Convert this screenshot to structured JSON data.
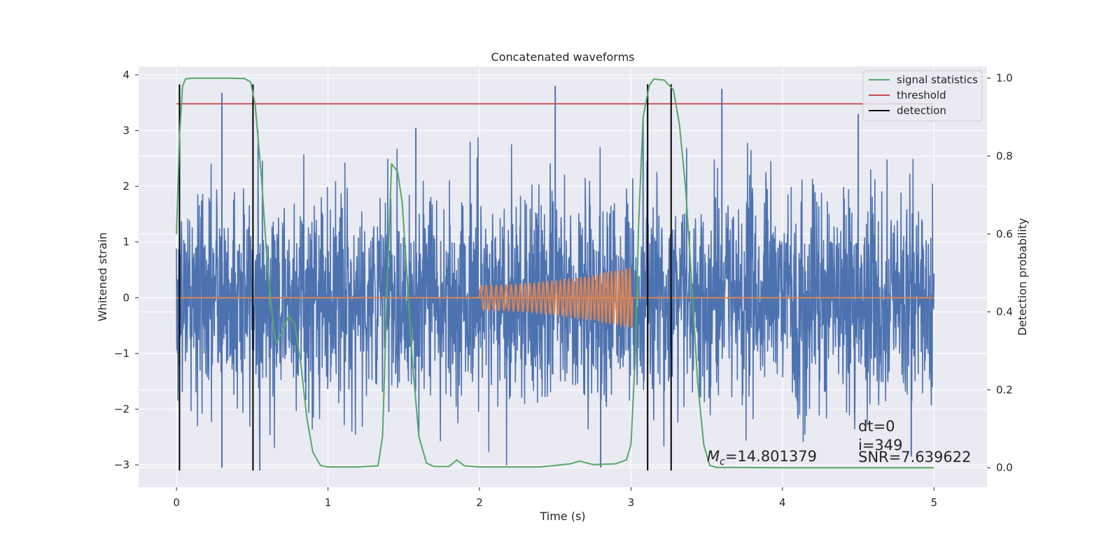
{
  "chart_data": {
    "type": "line",
    "title": "Concatenated waveforms",
    "xlabel": "Time (s)",
    "ylabel": "Whitened strain",
    "ylabel_right": "Detection probability",
    "xlim": [
      -0.25,
      5.35
    ],
    "ylim": [
      -3.4,
      4.15
    ],
    "ylim_right": [
      -0.05,
      1.03
    ],
    "x_ticks": [
      0,
      1,
      2,
      3,
      4,
      5
    ],
    "x_tick_labels": [
      "0",
      "1",
      "2",
      "3",
      "4",
      "5"
    ],
    "y_ticks": [
      -3,
      -2,
      -1,
      0,
      1,
      2,
      3,
      4
    ],
    "y_tick_labels": [
      "−3",
      "−2",
      "−1",
      "0",
      "1",
      "2",
      "3",
      "4"
    ],
    "y_right_ticks": [
      0.0,
      0.2,
      0.4,
      0.6,
      0.8,
      1.0
    ],
    "y_right_tick_labels": [
      "0.0",
      "0.2",
      "0.4",
      "0.6",
      "0.8",
      "1.0"
    ],
    "grid": true,
    "legend_position": "top-right",
    "colors": {
      "background": "#eaeaf2",
      "grid": "#ffffff",
      "strain": "#4c72b0",
      "template": "#dd8452",
      "signal_statistics": "#55a868",
      "threshold": "#c44e52",
      "detection": "#000000"
    },
    "series": [
      {
        "key": "strain",
        "axis": "left",
        "x_range": [
          0,
          5
        ],
        "noise_std": 0.95,
        "spikes": [
          {
            "x": 0.3,
            "y": 3.68
          },
          {
            "x": 2.5,
            "y": 3.8
          },
          {
            "x": 3.6,
            "y": 3.75
          },
          {
            "x": 4.5,
            "y": 3.3
          },
          {
            "x": 3.08,
            "y": 3.2
          },
          {
            "x": 1.58,
            "y": 3.05
          },
          {
            "x": 0.3,
            "y": -3.05
          },
          {
            "x": 0.55,
            "y": -3.1
          },
          {
            "x": 2.8,
            "y": -3.05
          },
          {
            "x": 4.85,
            "y": -2.85
          }
        ]
      },
      {
        "key": "template",
        "axis": "left",
        "flat": [
          [
            0,
            0
          ],
          [
            5,
            0
          ]
        ],
        "chirp": {
          "t0": 2.0,
          "t1": 3.01,
          "amp_start": 0.22,
          "amp_end": 0.55,
          "cycles": 36
        }
      },
      {
        "name": "signal statistics",
        "key": "signal_statistics",
        "axis": "right",
        "points": [
          [
            0.0,
            0.6
          ],
          [
            0.02,
            0.85
          ],
          [
            0.04,
            0.98
          ],
          [
            0.06,
            0.998
          ],
          [
            0.1,
            1.0
          ],
          [
            0.2,
            1.0
          ],
          [
            0.35,
            1.0
          ],
          [
            0.45,
            0.999
          ],
          [
            0.49,
            0.99
          ],
          [
            0.52,
            0.93
          ],
          [
            0.56,
            0.75
          ],
          [
            0.6,
            0.52
          ],
          [
            0.64,
            0.36
          ],
          [
            0.66,
            0.32
          ],
          [
            0.7,
            0.35
          ],
          [
            0.74,
            0.39
          ],
          [
            0.78,
            0.37
          ],
          [
            0.82,
            0.27
          ],
          [
            0.86,
            0.13
          ],
          [
            0.9,
            0.04
          ],
          [
            0.95,
            0.006
          ],
          [
            1.0,
            0.002
          ],
          [
            1.2,
            0.002
          ],
          [
            1.33,
            0.005
          ],
          [
            1.36,
            0.08
          ],
          [
            1.39,
            0.45
          ],
          [
            1.42,
            0.78
          ],
          [
            1.46,
            0.76
          ],
          [
            1.49,
            0.68
          ],
          [
            1.52,
            0.5
          ],
          [
            1.56,
            0.26
          ],
          [
            1.6,
            0.08
          ],
          [
            1.65,
            0.012
          ],
          [
            1.7,
            0.003
          ],
          [
            1.8,
            0.003
          ],
          [
            1.85,
            0.02
          ],
          [
            1.9,
            0.005
          ],
          [
            2.0,
            0.002
          ],
          [
            2.4,
            0.002
          ],
          [
            2.6,
            0.01
          ],
          [
            2.66,
            0.017
          ],
          [
            2.75,
            0.008
          ],
          [
            2.9,
            0.01
          ],
          [
            2.97,
            0.02
          ],
          [
            3.0,
            0.06
          ],
          [
            3.03,
            0.3
          ],
          [
            3.05,
            0.62
          ],
          [
            3.08,
            0.9
          ],
          [
            3.12,
            0.98
          ],
          [
            3.15,
            0.998
          ],
          [
            3.22,
            0.995
          ],
          [
            3.28,
            0.97
          ],
          [
            3.32,
            0.88
          ],
          [
            3.36,
            0.72
          ],
          [
            3.4,
            0.48
          ],
          [
            3.44,
            0.22
          ],
          [
            3.48,
            0.06
          ],
          [
            3.52,
            0.006
          ],
          [
            3.56,
            0.001
          ],
          [
            4.0,
            0.0
          ],
          [
            5.0,
            0.0
          ]
        ]
      },
      {
        "name": "threshold",
        "key": "threshold",
        "axis": "left",
        "points": [
          [
            0,
            3.48
          ],
          [
            5,
            3.48
          ]
        ]
      },
      {
        "name": "detection",
        "key": "detection",
        "axis": "left",
        "x_positions": [
          0.02,
          0.505,
          3.11,
          3.265
        ],
        "y_range": [
          -3.1,
          3.83
        ]
      }
    ],
    "annotations": {
      "mc": {
        "prefix": "M",
        "sub": "c",
        "value": "=14.801379"
      },
      "dt": "dt=0",
      "i": "i=349",
      "snr": "SNR=7.639622"
    }
  }
}
